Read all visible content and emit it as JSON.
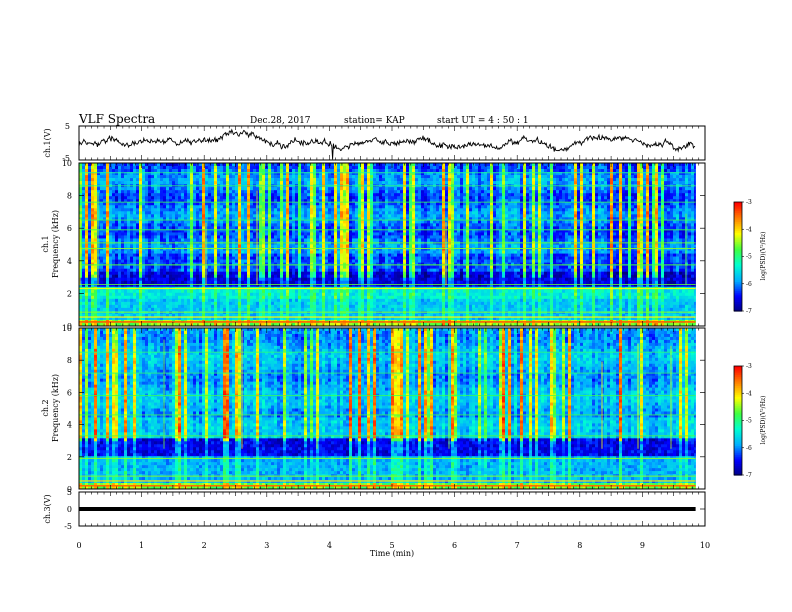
{
  "header": {
    "title": "VLF Spectra",
    "date": "Dec.28, 2017",
    "station": "station= KAP",
    "start": "start  UT =   4 : 50 : 1"
  },
  "chart_data": [
    {
      "type": "line",
      "ylabel": "ch.1(V)",
      "ylim": [
        -5,
        5
      ],
      "yticks": [
        "5",
        "-5"
      ],
      "xlim": [
        0,
        10
      ],
      "note": "noisy waveform around -2 to +2 V",
      "series": [
        {
          "color": "#000000",
          "mean": 0,
          "amplitude": 1.8
        }
      ]
    },
    {
      "type": "heatmap",
      "ylabel": "ch.1\nFrequency  (kHz)",
      "ylim": [
        0,
        10
      ],
      "yticks": [
        "0",
        "2",
        "4",
        "6",
        "8",
        "10"
      ],
      "xlim": [
        0,
        9.85
      ],
      "colorbar": {
        "label": "log(PSD)(V²/Hz)",
        "range": [
          -7,
          -3
        ],
        "ticks": [
          "-3",
          "-4",
          "-5",
          "-6",
          "-7"
        ]
      }
    },
    {
      "type": "heatmap",
      "ylabel": "ch.2\nFrequency  (kHz)",
      "ylim": [
        0,
        10
      ],
      "yticks": [
        "0",
        "2",
        "4",
        "6",
        "8",
        "10"
      ],
      "xlim": [
        0,
        9.85
      ],
      "colorbar": {
        "label": "log(PSD)(V²/Hz)",
        "range": [
          -7,
          -3
        ],
        "ticks": [
          "-3",
          "-4",
          "-5",
          "-6",
          "-7"
        ]
      }
    },
    {
      "type": "line",
      "ylabel": "ch.3(V)",
      "ylim": [
        -5,
        5
      ],
      "yticks": [
        "5",
        "0",
        "-5"
      ],
      "xlim": [
        0,
        10
      ],
      "series": [
        {
          "color": "#000000",
          "constant": 0
        }
      ]
    }
  ],
  "xaxis": {
    "label": "Time  (min)",
    "ticks": [
      "0",
      "1",
      "2",
      "3",
      "4",
      "5",
      "6",
      "7",
      "8",
      "9",
      "10"
    ]
  },
  "colors": {
    "colormap": [
      "#000080",
      "#0000ff",
      "#00b0ff",
      "#00ffd0",
      "#40ff40",
      "#ffff00",
      "#ff8000",
      "#ff0000",
      "#ffffff"
    ]
  }
}
